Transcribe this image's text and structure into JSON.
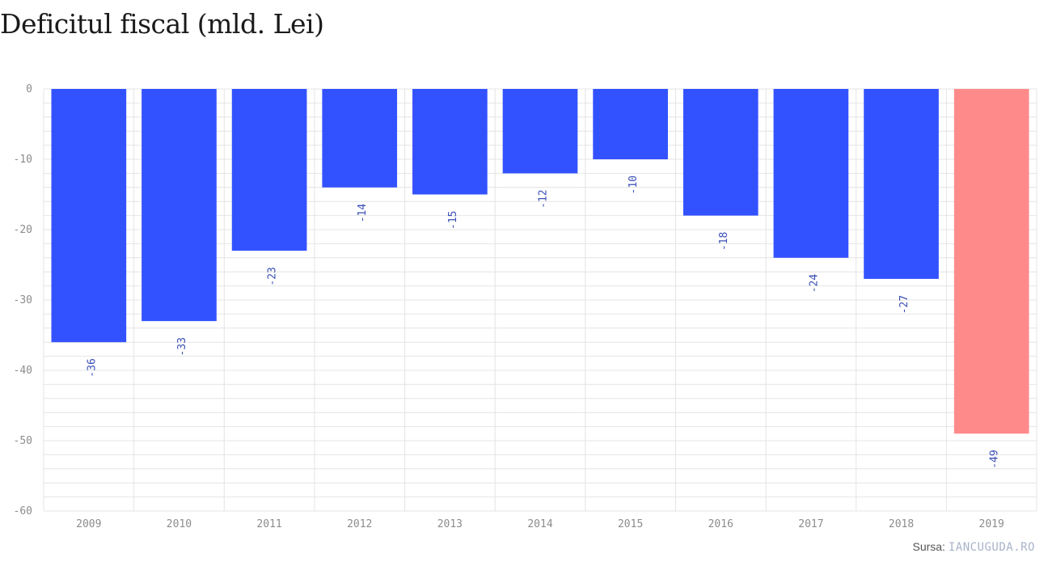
{
  "colors": {
    "bar": "#3352ff",
    "highlight": "#ff8a8a",
    "grid": "#e4e4e4",
    "label": "#3a4fb5"
  },
  "source": {
    "label": "Sursa:",
    "site": "IANCUGUDA.RO"
  },
  "chart_data": {
    "type": "bar",
    "title": "Deficitul fiscal (mld. Lei)",
    "categories": [
      "2009",
      "2010",
      "2011",
      "2012",
      "2013",
      "2014",
      "2015",
      "2016",
      "2017",
      "2018",
      "2019"
    ],
    "values": [
      -36,
      -33,
      -23,
      -14,
      -15,
      -12,
      -10,
      -18,
      -24,
      -27,
      -49
    ],
    "highlight_category": "2019",
    "ylim": [
      -60,
      0
    ],
    "yticks": [
      0,
      -10,
      -20,
      -30,
      -40,
      -50,
      -60
    ],
    "grid": true,
    "data_labels": "rotated below bars",
    "legend": "none"
  }
}
